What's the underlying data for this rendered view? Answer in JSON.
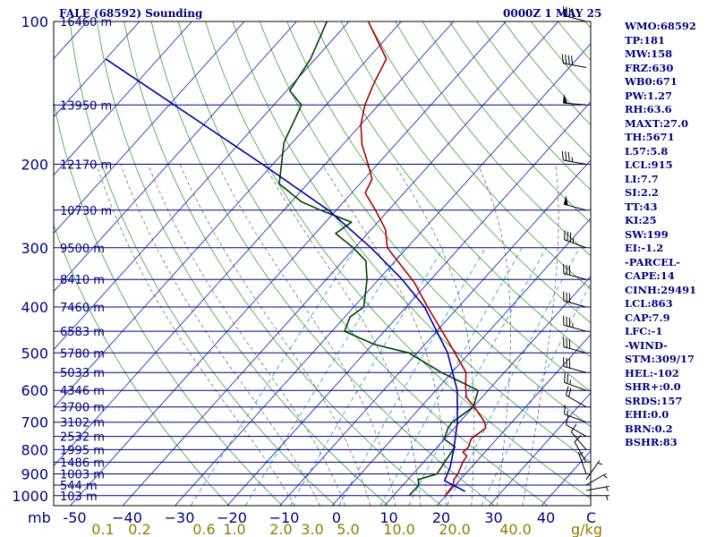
{
  "header": {
    "left": "FALE (68592) Sounding",
    "right": "0000Z  1 MAY 25"
  },
  "indices": [
    "WMO:68592",
    "TP:181",
    "MW:158",
    "FRZ:630",
    "WB0:671",
    "PW:1.27",
    "RH:63.6",
    "MAXT:27.0",
    "TH:5671",
    "L57:5.8",
    "LCL:915",
    "LI:7.7",
    "SI:2.2",
    "TT:43",
    "KI:25",
    "SW:199",
    "EI:-1.2",
    "-PARCEL-",
    "CAPE:14",
    "CINH:29491",
    "LCL:863",
    "CAP:7.9",
    "LFC:-1",
    "-WIND-",
    "STM:309/17",
    "HEL:-102",
    "SHR+:0.0",
    "SRDS:157",
    "EHI:0.0",
    "BRN:0.2",
    "BSHR:83"
  ],
  "chart_data": {
    "type": "line",
    "diagram": "skew-T log-P",
    "x_axis_unit_label": "C",
    "y_axis_unit_label": "mb",
    "mixing_ratio_unit_label": "g/kg",
    "pressure_ticks": [
      {
        "p": 100,
        "label": "100"
      },
      {
        "p": 200,
        "label": "200"
      },
      {
        "p": 300,
        "label": "300"
      },
      {
        "p": 400,
        "label": "400"
      },
      {
        "p": 500,
        "label": "500"
      },
      {
        "p": 600,
        "label": "600"
      },
      {
        "p": 700,
        "label": "700"
      },
      {
        "p": 800,
        "label": "800"
      },
      {
        "p": 900,
        "label": "900"
      },
      {
        "p": 1000,
        "label": "1000"
      }
    ],
    "height_labels": [
      {
        "p": 100,
        "label": "16460 m"
      },
      {
        "p": 150,
        "label": "13950 m"
      },
      {
        "p": 200,
        "label": "12170 m"
      },
      {
        "p": 250,
        "label": "10730 m"
      },
      {
        "p": 300,
        "label": "9500 m"
      },
      {
        "p": 350,
        "label": "8410 m"
      },
      {
        "p": 400,
        "label": "7460 m"
      },
      {
        "p": 450,
        "label": "6583 m"
      },
      {
        "p": 500,
        "label": "5780 m"
      },
      {
        "p": 550,
        "label": "5033 m"
      },
      {
        "p": 600,
        "label": "4346 m"
      },
      {
        "p": 650,
        "label": "3700 m"
      },
      {
        "p": 700,
        "label": "3102 m"
      },
      {
        "p": 750,
        "label": "2532 m"
      },
      {
        "p": 800,
        "label": "1995 m"
      },
      {
        "p": 850,
        "label": "1486 m"
      },
      {
        "p": 900,
        "label": "1003 m"
      },
      {
        "p": 950,
        "label": "544 m"
      },
      {
        "p": 1000,
        "label": "103 m"
      }
    ],
    "temperature_ticks": [
      {
        "t": -50,
        "label": "-50"
      },
      {
        "t": -40,
        "label": "−40"
      },
      {
        "t": -30,
        "label": "−30"
      },
      {
        "t": -20,
        "label": "−20"
      },
      {
        "t": -10,
        "label": "−10"
      },
      {
        "t": 0,
        "label": "0"
      },
      {
        "t": 10,
        "label": "10"
      },
      {
        "t": 20,
        "label": "20"
      },
      {
        "t": 30,
        "label": "30"
      },
      {
        "t": 40,
        "label": "40"
      }
    ],
    "mixing_ratio_labels": [
      {
        "w": 0.1,
        "label": "0.1"
      },
      {
        "w": 0.2,
        "label": "0.2"
      },
      {
        "w": 0.6,
        "label": "0.6"
      },
      {
        "w": 1.0,
        "label": "1.0"
      },
      {
        "w": 2.0,
        "label": "2.0"
      },
      {
        "w": 3.0,
        "label": "3.0"
      },
      {
        "w": 5.0,
        "label": "5.0"
      },
      {
        "w": 10.0,
        "label": "10.0"
      },
      {
        "w": 20.0,
        "label": "20.0"
      },
      {
        "w": 40.0,
        "label": "40.0"
      }
    ],
    "isotherms_c": [
      -150,
      -140,
      -130,
      -120,
      -110,
      -100,
      -90,
      -80,
      -70,
      -60,
      -50,
      -40,
      -30,
      -20,
      -10,
      0,
      10,
      20,
      30,
      40,
      50
    ],
    "dry_adiabats_k": [
      250,
      260,
      270,
      280,
      290,
      300,
      310,
      320,
      330,
      340,
      350,
      360,
      370,
      380,
      390,
      400,
      410,
      420,
      430,
      440,
      450,
      460,
      470,
      480,
      490,
      500,
      510,
      520
    ],
    "moist_adiabats_c": [
      -10,
      -5,
      0,
      5,
      10,
      15,
      20,
      25,
      30,
      35
    ],
    "mixing_ratio_lines_gkg": [
      0.4,
      1,
      2,
      4,
      7,
      10,
      16,
      24
    ],
    "series": [
      {
        "name": "temperature",
        "color": "#b00000",
        "points": [
          {
            "p": 1000,
            "t": 19.9
          },
          {
            "p": 950,
            "t": 19.6
          },
          {
            "p": 925,
            "t": 18.8
          },
          {
            "p": 900,
            "t": 18.6
          },
          {
            "p": 850,
            "t": 17.5
          },
          {
            "p": 825,
            "t": 17.2
          },
          {
            "p": 810,
            "t": 15.8
          },
          {
            "p": 790,
            "t": 16.0
          },
          {
            "p": 760,
            "t": 15.1
          },
          {
            "p": 720,
            "t": 16.0
          },
          {
            "p": 700,
            "t": 14.8
          },
          {
            "p": 650,
            "t": 10.2
          },
          {
            "p": 620,
            "t": 7.0
          },
          {
            "p": 585,
            "t": 4.8
          },
          {
            "p": 550,
            "t": 2.7
          },
          {
            "p": 500,
            "t": -2.8
          },
          {
            "p": 470,
            "t": -6.4
          },
          {
            "p": 400,
            "t": -15.9
          },
          {
            "p": 355,
            "t": -22.7
          },
          {
            "p": 300,
            "t": -33.8
          },
          {
            "p": 275,
            "t": -37.2
          },
          {
            "p": 250,
            "t": -42.5
          },
          {
            "p": 230,
            "t": -47.4
          },
          {
            "p": 215,
            "t": -48.5
          },
          {
            "p": 200,
            "t": -51.8
          },
          {
            "p": 182,
            "t": -56.3
          },
          {
            "p": 165,
            "t": -60.0
          },
          {
            "p": 150,
            "t": -62.6
          },
          {
            "p": 135,
            "t": -64.6
          },
          {
            "p": 120,
            "t": -66.4
          },
          {
            "p": 100,
            "t": -76.3
          }
        ]
      },
      {
        "name": "dewpoint",
        "color": "#004000",
        "points": [
          {
            "p": 1000,
            "t": 13.0
          },
          {
            "p": 950,
            "t": 13.0
          },
          {
            "p": 925,
            "t": 12.0
          },
          {
            "p": 900,
            "t": 14.6
          },
          {
            "p": 850,
            "t": 14.0
          },
          {
            "p": 790,
            "t": 13.4
          },
          {
            "p": 760,
            "t": 10.0
          },
          {
            "p": 720,
            "t": 8.8
          },
          {
            "p": 700,
            "t": 8.6
          },
          {
            "p": 650,
            "t": 10.0
          },
          {
            "p": 600,
            "t": 8.1
          },
          {
            "p": 550,
            "t": -2.0
          },
          {
            "p": 500,
            "t": -11.6
          },
          {
            "p": 480,
            "t": -19.6
          },
          {
            "p": 450,
            "t": -27.6
          },
          {
            "p": 420,
            "t": -29.0
          },
          {
            "p": 400,
            "t": -28.1
          },
          {
            "p": 350,
            "t": -32.2
          },
          {
            "p": 320,
            "t": -35.6
          },
          {
            "p": 300,
            "t": -40.3
          },
          {
            "p": 280,
            "t": -46.1
          },
          {
            "p": 265,
            "t": -45.0
          },
          {
            "p": 250,
            "t": -53.0
          },
          {
            "p": 240,
            "t": -58.1
          },
          {
            "p": 220,
            "t": -65.4
          },
          {
            "p": 180,
            "t": -71.6
          },
          {
            "p": 150,
            "t": -74.7
          },
          {
            "p": 140,
            "t": -79.4
          },
          {
            "p": 120,
            "t": -80.9
          },
          {
            "p": 100,
            "t": -84.2
          }
        ]
      },
      {
        "name": "parcel",
        "color": "#0000a0",
        "points": [
          {
            "p": 980,
            "t": 23.0
          },
          {
            "p": 930,
            "t": 17.2
          },
          {
            "p": 870,
            "t": 15.9
          },
          {
            "p": 800,
            "t": 13.6
          },
          {
            "p": 700,
            "t": 9.6
          },
          {
            "p": 600,
            "t": 4.1
          },
          {
            "p": 500,
            "t": -4.2
          },
          {
            "p": 400,
            "t": -16.5
          },
          {
            "p": 350,
            "t": -25.5
          },
          {
            "p": 300,
            "t": -36.9
          },
          {
            "p": 250,
            "t": -51.5
          },
          {
            "p": 200,
            "t": -72.0
          },
          {
            "p": 150,
            "t": -99.0
          },
          {
            "p": 120,
            "t": -120.0
          }
        ]
      }
    ],
    "wind_barbs": [
      {
        "p": 1000,
        "dir": 90,
        "spd": 5
      },
      {
        "p": 975,
        "dir": 80,
        "spd": 5
      },
      {
        "p": 950,
        "dir": 60,
        "spd": 5
      },
      {
        "p": 925,
        "dir": 35,
        "spd": 5
      },
      {
        "p": 900,
        "dir": 340,
        "spd": 5
      },
      {
        "p": 850,
        "dir": 330,
        "spd": 10
      },
      {
        "p": 800,
        "dir": 320,
        "spd": 10
      },
      {
        "p": 750,
        "dir": 300,
        "spd": 10
      },
      {
        "p": 700,
        "dir": 290,
        "spd": 15
      },
      {
        "p": 650,
        "dir": 300,
        "spd": 20
      },
      {
        "p": 600,
        "dir": 290,
        "spd": 25
      },
      {
        "p": 550,
        "dir": 285,
        "spd": 30
      },
      {
        "p": 500,
        "dir": 285,
        "spd": 30
      },
      {
        "p": 450,
        "dir": 285,
        "spd": 35
      },
      {
        "p": 400,
        "dir": 285,
        "spd": 30
      },
      {
        "p": 350,
        "dir": 285,
        "spd": 30
      },
      {
        "p": 300,
        "dir": 290,
        "spd": 35
      },
      {
        "p": 250,
        "dir": 285,
        "spd": 50
      },
      {
        "p": 200,
        "dir": 280,
        "spd": 35
      },
      {
        "p": 150,
        "dir": 275,
        "spd": 50
      },
      {
        "p": 125,
        "dir": 280,
        "spd": 40
      },
      {
        "p": 100,
        "dir": 285,
        "spd": 40
      }
    ]
  }
}
